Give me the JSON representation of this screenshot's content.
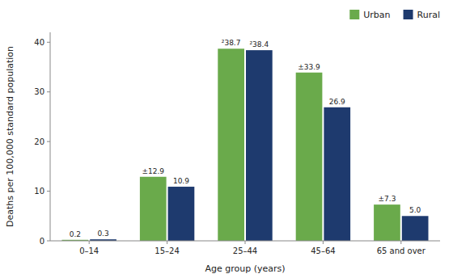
{
  "chart_data": {
    "type": "bar",
    "categories": [
      "0–14",
      "15–24",
      "25–44",
      "45–64",
      "65 and over"
    ],
    "series": [
      {
        "name": "Urban",
        "color": "#6aaa4b",
        "values": [
          0.2,
          12.9,
          38.7,
          33.9,
          7.3
        ],
        "value_labels": [
          "0.2",
          "±12.9",
          "²38.7",
          "±33.9",
          "±7.3"
        ]
      },
      {
        "name": "Rural",
        "color": "#1e3a6e",
        "values": [
          0.3,
          10.9,
          38.4,
          26.9,
          5.0
        ],
        "value_labels": [
          "0.3",
          "10.9",
          "²38.4",
          "26.9",
          "5.0"
        ]
      }
    ],
    "xlabel": "Age group (years)",
    "ylabel": "Deaths per 100,000 standard population",
    "ylim": [
      0,
      42
    ],
    "yticks": [
      0,
      10,
      20,
      30,
      40
    ],
    "legend": "upper right",
    "data_labels": true,
    "grid": false
  }
}
